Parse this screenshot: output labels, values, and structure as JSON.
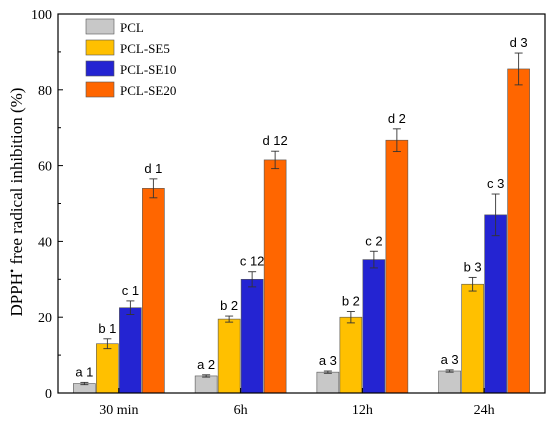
{
  "chart_data": {
    "type": "bar",
    "categories": [
      "30 min",
      "6h",
      "12h",
      "24h"
    ],
    "ylabel": {
      "prefix": "DPPH",
      "superscript": "•",
      "rest": " free radical inhibition (%)"
    },
    "ylim": [
      0,
      100
    ],
    "yticks": [
      0,
      20,
      40,
      60,
      80,
      100
    ],
    "legend_position": "top-left",
    "series": [
      {
        "name": "PCL",
        "color": "#c8c8c8",
        "values": [
          2.5,
          4.5,
          5.5,
          5.8
        ],
        "errors": [
          0.3,
          0.3,
          0.3,
          0.3
        ],
        "labels": [
          "a 1",
          "a 2",
          "a 3",
          "a 3"
        ]
      },
      {
        "name": "PCL-SE5",
        "color": "#ffc000",
        "values": [
          13.0,
          19.5,
          20.0,
          28.7
        ],
        "errors": [
          1.3,
          0.8,
          1.5,
          1.8
        ],
        "labels": [
          "b 1",
          "b 2",
          "b 2",
          "b 3"
        ]
      },
      {
        "name": "PCL-SE10",
        "color": "#2424d2",
        "values": [
          22.5,
          30.0,
          35.2,
          47.0
        ],
        "errors": [
          1.8,
          2.0,
          2.2,
          5.5
        ],
        "labels": [
          "c 1",
          "c 12",
          "c 2",
          "c 3"
        ]
      },
      {
        "name": "PCL-SE20",
        "color": "#ff6600",
        "values": [
          54.0,
          61.5,
          66.7,
          85.5
        ],
        "errors": [
          2.5,
          2.3,
          3.0,
          4.2
        ],
        "labels": [
          "d 1",
          "d 12",
          "d 2",
          "d 3"
        ]
      }
    ]
  }
}
